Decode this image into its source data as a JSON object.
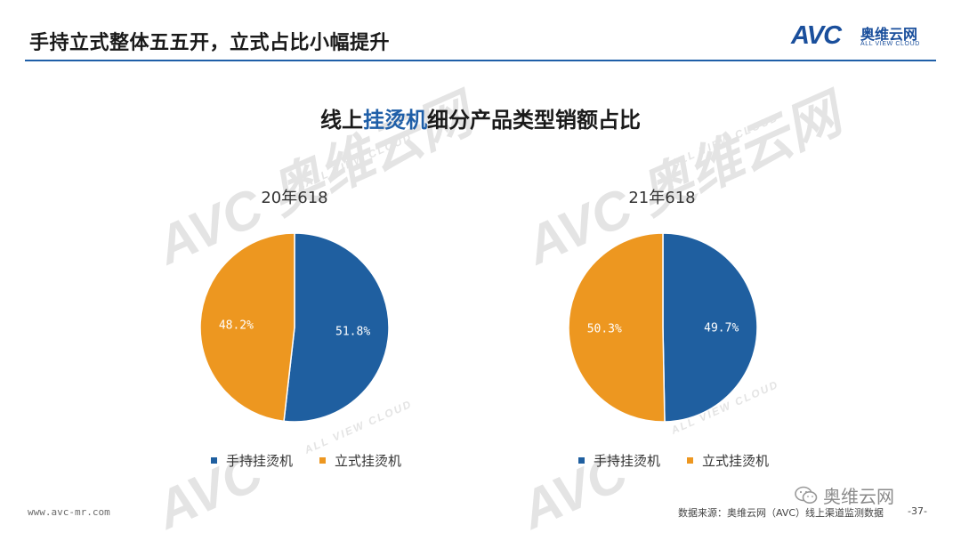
{
  "header": {
    "title": "手持立式整体五五开，立式占比小幅提升",
    "logo": {
      "mark": "AVC",
      "cn": "奥维云网",
      "en": "ALL VIEW CLOUD"
    }
  },
  "watermark": {
    "mark": "AVC",
    "cn": "奥维云网",
    "en": "ALL VIEW CLOUD"
  },
  "chart_title": {
    "prefix": "线上",
    "highlight": "挂烫机",
    "suffix": "细分产品类型销额占比"
  },
  "colors": {
    "handheld": "#1f5fa0",
    "vertical": "#ed9720",
    "accent": "#1f5fa8"
  },
  "chart_data": [
    {
      "type": "pie",
      "title": "20年618",
      "series": [
        {
          "name": "手持挂烫机",
          "value": 51.8,
          "label": "51.8%"
        },
        {
          "name": "立式挂烫机",
          "value": 48.2,
          "label": "48.2%"
        }
      ],
      "legend": "bottom"
    },
    {
      "type": "pie",
      "title": "21年618",
      "series": [
        {
          "name": "手持挂烫机",
          "value": 49.7,
          "label": "49.7%"
        },
        {
          "name": "立式挂烫机",
          "value": 50.3,
          "label": "50.3%"
        }
      ],
      "legend": "bottom"
    }
  ],
  "footer": {
    "url": "www.avc-mr.com",
    "source": "数据来源：奥维云网（AVC）线上渠道监测数据",
    "page": "-37-",
    "wechat": "奥维云网"
  }
}
